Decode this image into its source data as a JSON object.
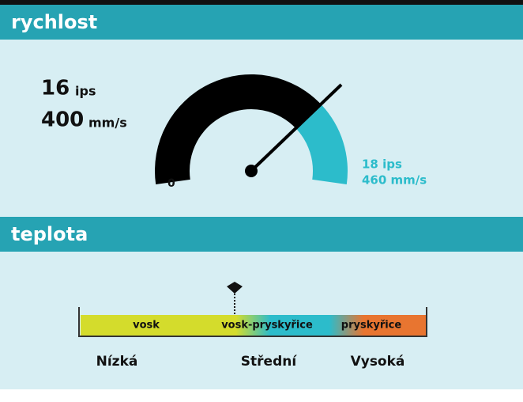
{
  "speed": {
    "title": "rychlost",
    "current_ips": "16",
    "ips_unit": "ips",
    "current_mms": "400",
    "mms_unit": "mm/s",
    "min_label": "0",
    "max_ips": "18 ips",
    "max_mms": "460 mm/s"
  },
  "temperature": {
    "title": "teplota",
    "zones": [
      "vosk",
      "vosk-pryskyřice",
      "pryskyřice"
    ],
    "levels": [
      "Nízká",
      "Střední",
      "Vysoká"
    ]
  }
}
